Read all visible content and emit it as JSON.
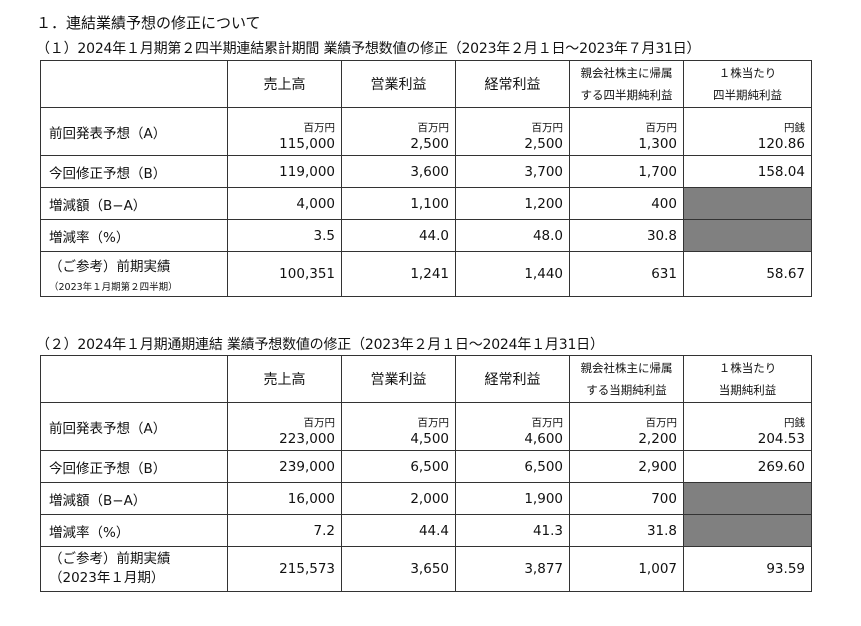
{
  "heading": "１．連結業績予想の修正について",
  "section1": {
    "title": "（１）2024年１月期第２四半期連結累計期間 業績予想数値の修正（2023年２月１日～2023年７月31日）",
    "headers": [
      "売上高",
      "営業利益",
      "経常利益",
      "親会社株主に帰属",
      "する四半期純利益",
      "１株当たり",
      "四半期純利益"
    ],
    "units": [
      "百万円",
      "百万円",
      "百万円",
      "百万円",
      "円銭"
    ],
    "rows": {
      "prev": {
        "label": "前回発表予想（A）",
        "values": [
          "115,000",
          "2,500",
          "2,500",
          "1,300",
          "120.86"
        ]
      },
      "rev": {
        "label": "今回修正予想（B）",
        "values": [
          "119,000",
          "3,600",
          "3,700",
          "1,700",
          "158.04"
        ]
      },
      "diff": {
        "label": "増減額（B−A）",
        "values": [
          "4,000",
          "1,100",
          "1,200",
          "400"
        ]
      },
      "rate": {
        "label": "増減率（%）",
        "values": [
          "3.5",
          "44.0",
          "48.0",
          "30.8"
        ]
      },
      "ref": {
        "label": "（ご参考）前期実績",
        "note": "（2023年１月期第２四半期）",
        "values": [
          "100,351",
          "1,241",
          "1,440",
          "631",
          "58.67"
        ]
      }
    }
  },
  "section2": {
    "title": "（２）2024年１月期通期連結 業績予想数値の修正（2023年２月１日～2024年１月31日）",
    "headers": [
      "売上高",
      "営業利益",
      "経常利益",
      "親会社株主に帰属",
      "する当期純利益",
      "１株当たり",
      "当期純利益"
    ],
    "units": [
      "百万円",
      "百万円",
      "百万円",
      "百万円",
      "円銭"
    ],
    "rows": {
      "prev": {
        "label": "前回発表予想（A）",
        "values": [
          "223,000",
          "4,500",
          "4,600",
          "2,200",
          "204.53"
        ]
      },
      "rev": {
        "label": "今回修正予想（B）",
        "values": [
          "239,000",
          "6,500",
          "6,500",
          "2,900",
          "269.60"
        ]
      },
      "diff": {
        "label": "増減額（B−A）",
        "values": [
          "16,000",
          "2,000",
          "1,900",
          "700"
        ]
      },
      "rate": {
        "label": "増減率（%）",
        "values": [
          "7.2",
          "44.4",
          "41.3",
          "31.8"
        ]
      },
      "ref": {
        "label": "（ご参考）前期実績",
        "note": "（2023年１月期）",
        "values": [
          "215,573",
          "3,650",
          "3,877",
          "1,007",
          "93.59"
        ]
      }
    }
  },
  "colors": {
    "shade": "#808080",
    "border": "#333333"
  }
}
